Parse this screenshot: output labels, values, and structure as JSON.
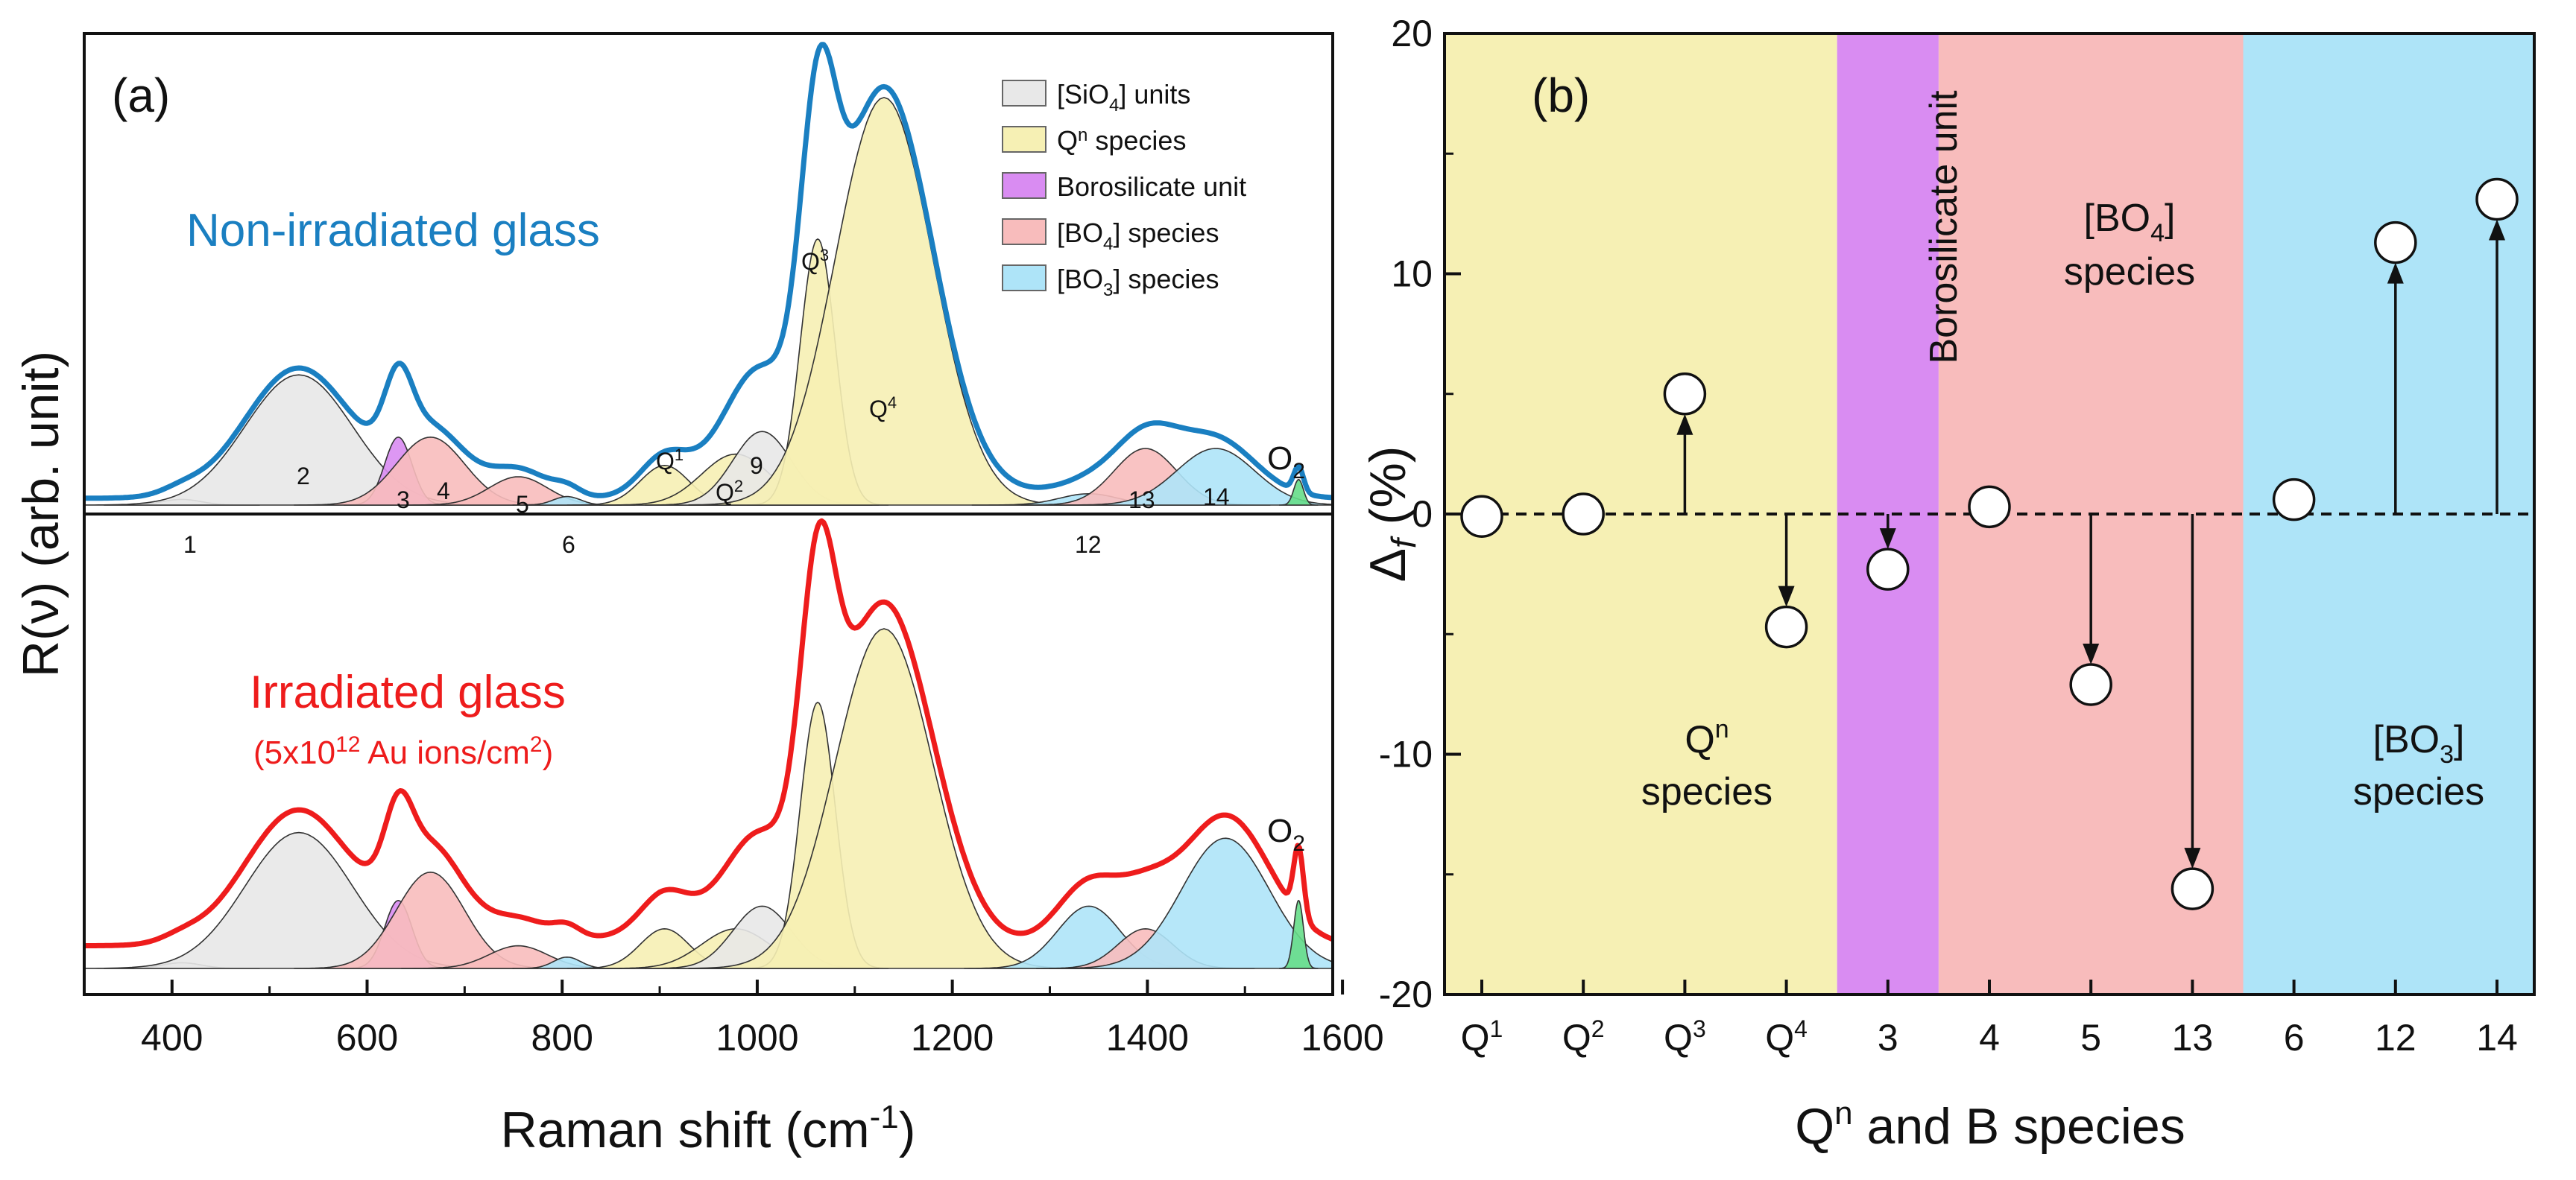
{
  "left_panel": {
    "panel_label": "(a)",
    "x_axis_title": "Raman shift (cm",
    "x_axis_title_sup": "-1",
    "x_axis_title_end": ")",
    "y_axis_title": "R(ν)  (arb. unit)",
    "x_ticks": [
      "400",
      "600",
      "800",
      "1000",
      "1200",
      "1400",
      "1600"
    ],
    "top_title": "Non-irradiated glass",
    "bottom_title": "Irradiated glass",
    "bottom_subtitle_a": "(5x10",
    "bottom_subtitle_sup": "12",
    "bottom_subtitle_b": " Au ions/cm",
    "bottom_subtitle_sup2": "2",
    "bottom_subtitle_c": ")",
    "o2_label": "O",
    "o2_sub": "2",
    "legend": [
      {
        "main": "[SiO",
        "sub": "4",
        "rest": "] units",
        "color": "#e8e8e8"
      },
      {
        "main": "Q",
        "sup": "n",
        "rest": " species",
        "color": "#f6f0b4"
      },
      {
        "main": "Borosilicate unit",
        "rest": "",
        "color": "#d98cf2"
      },
      {
        "main": "[BO",
        "sub": "4",
        "rest": "] species",
        "color": "#f8bcbc"
      },
      {
        "main": "[BO",
        "sub": "3",
        "rest": "] species",
        "color": "#aee4f8"
      }
    ],
    "peak_labels": {
      "p1": "1",
      "p2": "2",
      "p3": "3",
      "p4": "4",
      "p5": "5",
      "p6": "6",
      "p9": "9",
      "p12": "12",
      "p13": "13",
      "p14": "14",
      "q1": "Q",
      "q1s": "1",
      "q2": "Q",
      "q2s": "2",
      "q3": "Q",
      "q3s": "3",
      "q4": "Q",
      "q4s": "4"
    },
    "colors": {
      "top_curve": "#1a7fc1",
      "bottom_curve": "#ee1c1c",
      "sio4": "#e8e8e8",
      "qn": "#f6f0b4",
      "boro": "#d98cf2",
      "bo4": "#f8bcbc",
      "bo3": "#aee4f8",
      "o2": "#66dd88"
    }
  },
  "chart_data": [
    {
      "type": "line",
      "title": "Non-irradiated glass",
      "xlabel": "Raman shift (cm-1)",
      "ylabel": "R(ν) (arb. unit)",
      "xlim": [
        310,
        1590
      ],
      "ylim": [
        0,
        1
      ],
      "components": [
        {
          "name": "1",
          "group": "[SiO4] units",
          "center": 410,
          "height": 0.01,
          "width": 20
        },
        {
          "name": "2",
          "group": "[SiO4] units",
          "center": 530,
          "height": 0.23,
          "width": 55
        },
        {
          "name": "3",
          "group": "Borosilicate unit",
          "center": 632,
          "height": 0.12,
          "width": 14
        },
        {
          "name": "4",
          "group": "[BO4] species",
          "center": 665,
          "height": 0.12,
          "width": 35
        },
        {
          "name": "5",
          "group": "[BO4] species",
          "center": 755,
          "height": 0.05,
          "width": 30
        },
        {
          "name": "6",
          "group": "[BO3] species",
          "center": 805,
          "height": 0.015,
          "width": 14
        },
        {
          "name": "Q1",
          "group": "Qn species",
          "center": 905,
          "height": 0.07,
          "width": 25
        },
        {
          "name": "Q2",
          "group": "Qn species",
          "center": 978,
          "height": 0.09,
          "width": 35
        },
        {
          "name": "9",
          "group": "[SiO4] units",
          "center": 1005,
          "height": 0.13,
          "width": 30
        },
        {
          "name": "Q3",
          "group": "Qn species",
          "center": 1062,
          "height": 0.47,
          "width": 18
        },
        {
          "name": "Q4",
          "group": "Qn species",
          "center": 1130,
          "height": 0.72,
          "width": 50
        },
        {
          "name": "12",
          "group": "[BO3] species",
          "center": 1340,
          "height": 0.02,
          "width": 30
        },
        {
          "name": "13",
          "group": "[BO4] species",
          "center": 1398,
          "height": 0.1,
          "width": 32
        },
        {
          "name": "14",
          "group": "[BO3] species",
          "center": 1470,
          "height": 0.1,
          "width": 40
        },
        {
          "name": "O2",
          "group": "O2",
          "center": 1555,
          "height": 0.045,
          "width": 5
        }
      ]
    },
    {
      "type": "line",
      "title": "Irradiated glass (5x10^12 Au ions/cm^2)",
      "xlabel": "Raman shift (cm-1)",
      "ylabel": "R(ν) (arb. unit)",
      "xlim": [
        310,
        1590
      ],
      "ylim": [
        0,
        1
      ],
      "components": [
        {
          "name": "1",
          "group": "[SiO4] units",
          "center": 410,
          "height": 0.01,
          "width": 20
        },
        {
          "name": "2",
          "group": "[SiO4] units",
          "center": 530,
          "height": 0.24,
          "width": 55
        },
        {
          "name": "3",
          "group": "Borosilicate unit",
          "center": 632,
          "height": 0.12,
          "width": 14
        },
        {
          "name": "4",
          "group": "[BO4] species",
          "center": 665,
          "height": 0.17,
          "width": 35
        },
        {
          "name": "5",
          "group": "[BO4] species",
          "center": 755,
          "height": 0.04,
          "width": 30
        },
        {
          "name": "6",
          "group": "[BO3] species",
          "center": 805,
          "height": 0.02,
          "width": 14
        },
        {
          "name": "Q1",
          "group": "Qn species",
          "center": 905,
          "height": 0.07,
          "width": 25
        },
        {
          "name": "Q2",
          "group": "Qn species",
          "center": 978,
          "height": 0.07,
          "width": 35
        },
        {
          "name": "9",
          "group": "[SiO4] units",
          "center": 1005,
          "height": 0.11,
          "width": 30
        },
        {
          "name": "Q3",
          "group": "Qn species",
          "center": 1062,
          "height": 0.47,
          "width": 18
        },
        {
          "name": "Q4",
          "group": "Qn species",
          "center": 1130,
          "height": 0.6,
          "width": 50
        },
        {
          "name": "12",
          "group": "[BO3] species",
          "center": 1340,
          "height": 0.11,
          "width": 32
        },
        {
          "name": "13",
          "group": "[BO4] species",
          "center": 1398,
          "height": 0.07,
          "width": 28
        },
        {
          "name": "14",
          "group": "[BO3] species",
          "center": 1480,
          "height": 0.23,
          "width": 45
        },
        {
          "name": "O2",
          "group": "O2",
          "center": 1555,
          "height": 0.12,
          "width": 5
        }
      ]
    },
    {
      "type": "scatter",
      "panel_label": "(b)",
      "xlabel": "Q",
      "xlabel_sup": "n",
      "xlabel_rest": " and B species",
      "ylabel": "Δ",
      "ylabel_sub": "f",
      "ylabel_rest": " (%)",
      "ylim": [
        -20,
        20
      ],
      "y_ticks": [
        "20",
        "10",
        "0",
        "-10",
        "-20"
      ],
      "categories": [
        {
          "main": "Q",
          "sup": "1"
        },
        {
          "main": "Q",
          "sup": "2"
        },
        {
          "main": "Q",
          "sup": "3"
        },
        {
          "main": "Q",
          "sup": "4"
        },
        {
          "main": "3"
        },
        {
          "main": "4"
        },
        {
          "main": "5"
        },
        {
          "main": "13"
        },
        {
          "main": "6"
        },
        {
          "main": "12"
        },
        {
          "main": "14"
        }
      ],
      "values": [
        -0.1,
        0.0,
        5.0,
        -4.7,
        -2.3,
        0.3,
        -7.1,
        -15.6,
        0.6,
        11.3,
        13.1
      ],
      "arrows": [
        false,
        false,
        true,
        true,
        true,
        false,
        true,
        true,
        false,
        true,
        true
      ],
      "bands": [
        {
          "label_a": "Q",
          "label_sup": "n",
          "label_b": "species",
          "from": 0,
          "to": 3,
          "color": "#f6f0b4"
        },
        {
          "label": "Borosilicate unit",
          "from": 4,
          "to": 4,
          "color": "#d98cf2"
        },
        {
          "label_a": "[BO",
          "label_sub": "4",
          "label_c": "]",
          "label_b": "species",
          "from": 5,
          "to": 7,
          "color": "#f8bcbc"
        },
        {
          "label_a": "[BO",
          "label_sub": "3",
          "label_c": "]",
          "label_b": "species",
          "from": 8,
          "to": 10,
          "color": "#aee4f8"
        }
      ]
    }
  ]
}
